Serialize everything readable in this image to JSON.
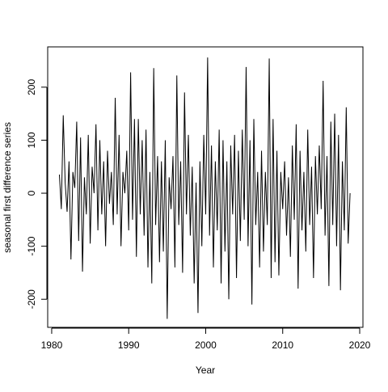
{
  "chart_data": {
    "type": "line",
    "xlabel": "Year",
    "ylabel": "seasonal first difference series",
    "color": "#000000",
    "xlim": [
      1979.48,
      2020.42
    ],
    "ylim": [
      -253,
      276
    ],
    "xticks": [
      1980,
      1990,
      2000,
      2010,
      2020
    ],
    "yticks": [
      -200,
      -100,
      0,
      100,
      200
    ],
    "x": [
      1981,
      1981.25,
      1981.5,
      1981.75,
      1982,
      1982.25,
      1982.5,
      1982.75,
      1983,
      1983.25,
      1983.5,
      1983.75,
      1984,
      1984.25,
      1984.5,
      1984.75,
      1985,
      1985.25,
      1985.5,
      1985.75,
      1986,
      1986.25,
      1986.5,
      1986.75,
      1987,
      1987.25,
      1987.5,
      1987.75,
      1988,
      1988.25,
      1988.5,
      1988.75,
      1989,
      1989.25,
      1989.5,
      1989.75,
      1990,
      1990.25,
      1990.5,
      1990.75,
      1991,
      1991.25,
      1991.5,
      1991.75,
      1992,
      1992.25,
      1992.5,
      1992.75,
      1993,
      1993.25,
      1993.5,
      1993.75,
      1994,
      1994.25,
      1994.5,
      1994.75,
      1995,
      1995.25,
      1995.5,
      1995.75,
      1996,
      1996.25,
      1996.5,
      1996.75,
      1997,
      1997.25,
      1997.5,
      1997.75,
      1998,
      1998.25,
      1998.5,
      1998.75,
      1999,
      1999.25,
      1999.5,
      1999.75,
      2000,
      2000.25,
      2000.5,
      2000.75,
      2001,
      2001.25,
      2001.5,
      2001.75,
      2002,
      2002.25,
      2002.5,
      2002.75,
      2003,
      2003.25,
      2003.5,
      2003.75,
      2004,
      2004.25,
      2004.5,
      2004.75,
      2005,
      2005.25,
      2005.5,
      2005.75,
      2006,
      2006.25,
      2006.5,
      2006.75,
      2007,
      2007.25,
      2007.5,
      2007.75,
      2008,
      2008.25,
      2008.5,
      2008.75,
      2009,
      2009.25,
      2009.5,
      2009.75,
      2010,
      2010.25,
      2010.5,
      2010.75,
      2011,
      2011.25,
      2011.5,
      2011.75,
      2012,
      2012.25,
      2012.5,
      2012.75,
      2013,
      2013.25,
      2013.5,
      2013.75,
      2014,
      2014.25,
      2014.5,
      2014.75,
      2015,
      2015.25,
      2015.5,
      2015.75,
      2016,
      2016.25,
      2016.5,
      2016.75,
      2017,
      2017.25,
      2017.5,
      2017.75,
      2018,
      2018.25,
      2018.5,
      2018.75
    ],
    "values": [
      35,
      -30,
      147,
      20,
      -35,
      60,
      -125,
      40,
      10,
      135,
      -90,
      105,
      -148,
      30,
      -40,
      110,
      -95,
      50,
      0,
      130,
      -70,
      100,
      -40,
      60,
      -100,
      80,
      -20,
      40,
      -60,
      180,
      -40,
      110,
      -100,
      40,
      0,
      80,
      -70,
      228,
      -50,
      140,
      -120,
      140,
      -40,
      100,
      -80,
      120,
      -140,
      40,
      -170,
      236,
      -60,
      70,
      -130,
      60,
      -110,
      100,
      -237,
      30,
      -30,
      70,
      -140,
      222,
      -60,
      60,
      -150,
      190,
      -40,
      110,
      -80,
      50,
      -170,
      20,
      -226,
      60,
      -100,
      110,
      -40,
      256,
      -80,
      90,
      -140,
      60,
      -70,
      120,
      -170,
      100,
      -110,
      60,
      -200,
      90,
      -40,
      110,
      -160,
      80,
      -90,
      120,
      -50,
      238,
      -100,
      100,
      -210,
      140,
      -60,
      40,
      -140,
      80,
      -110,
      40,
      -60,
      254,
      -160,
      140,
      -130,
      80,
      -155,
      40,
      -30,
      60,
      -80,
      30,
      -120,
      90,
      -50,
      130,
      -180,
      80,
      -70,
      40,
      -110,
      120,
      -60,
      50,
      -160,
      70,
      -40,
      90,
      -30,
      212,
      -80,
      70,
      -175,
      135,
      -60,
      150,
      -100,
      110,
      -183,
      60,
      -70,
      162,
      -95,
      0
    ]
  }
}
